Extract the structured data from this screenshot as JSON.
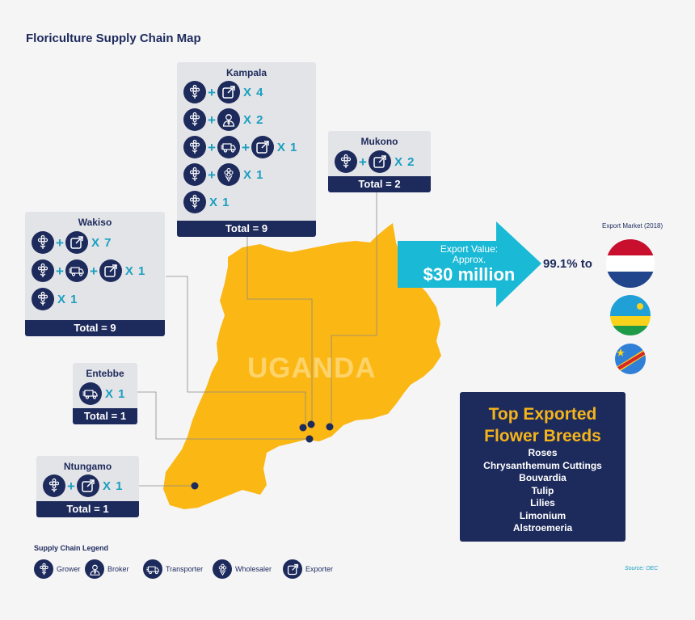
{
  "title": "Floriculture Supply Chain Map",
  "country_label": "UGANDA",
  "colors": {
    "navy": "#1d2a5c",
    "teal": "#1c9fc1",
    "map_yellow": "#fbb713",
    "box_bg": "#e3e4e7",
    "breeds_title": "#f4b41a"
  },
  "locations": {
    "kampala": {
      "name": "Kampala",
      "rows": [
        {
          "icons": [
            "grower-icon",
            "exporter-icon"
          ],
          "count": "X 4"
        },
        {
          "icons": [
            "grower-icon",
            "broker-icon"
          ],
          "count": "X 2"
        },
        {
          "icons": [
            "grower-icon",
            "transporter-icon",
            "exporter-icon"
          ],
          "count": "X 1"
        },
        {
          "icons": [
            "grower-icon",
            "wholesaler-icon"
          ],
          "count": "X 1"
        },
        {
          "icons": [
            "grower-icon"
          ],
          "count": "X 1"
        }
      ],
      "total": "Total = 9"
    },
    "mukono": {
      "name": "Mukono",
      "rows": [
        {
          "icons": [
            "grower-icon",
            "exporter-icon"
          ],
          "count": "X 2"
        }
      ],
      "total": "Total = 2"
    },
    "wakiso": {
      "name": "Wakiso",
      "rows": [
        {
          "icons": [
            "grower-icon",
            "exporter-icon"
          ],
          "count": "X 7"
        },
        {
          "icons": [
            "grower-icon",
            "transporter-icon",
            "exporter-icon"
          ],
          "count": "X 1"
        },
        {
          "icons": [
            "grower-icon"
          ],
          "count": "X 1"
        }
      ],
      "total": "Total = 9"
    },
    "entebbe": {
      "name": "Entebbe",
      "rows": [
        {
          "icons": [
            "transporter-icon"
          ],
          "count": "X 1"
        }
      ],
      "total": "Total = 1"
    },
    "ntungamo": {
      "name": "Ntungamo",
      "rows": [
        {
          "icons": [
            "grower-icon",
            "exporter-icon"
          ],
          "count": "X 1"
        }
      ],
      "total": "Total = 1"
    }
  },
  "export": {
    "line1": "Export Value:",
    "line2": "Approx.",
    "value": "$30 million",
    "share": "99.1% to",
    "market_label": "Export Market (2018)",
    "flags": [
      "netherlands-flag-icon",
      "rwanda-flag-icon",
      "dr-congo-flag-icon"
    ]
  },
  "breeds": {
    "title_line1": "Top Exported",
    "title_line2": "Flower Breeds",
    "items": [
      "Roses",
      "Chrysanthemum Cuttings",
      "Bouvardia",
      "Tulip",
      "Lilies",
      "Limonium",
      "Alstroemeria"
    ]
  },
  "legend": {
    "title": "Supply Chain Legend",
    "items": [
      {
        "icon": "grower-icon",
        "label": "Grower"
      },
      {
        "icon": "broker-icon",
        "label": "Broker"
      },
      {
        "icon": "transporter-icon",
        "label": "Transporter"
      },
      {
        "icon": "wholesaler-icon",
        "label": "Wholesaler"
      },
      {
        "icon": "exporter-icon",
        "label": "Exporter"
      }
    ]
  },
  "source": "Source: OEC"
}
